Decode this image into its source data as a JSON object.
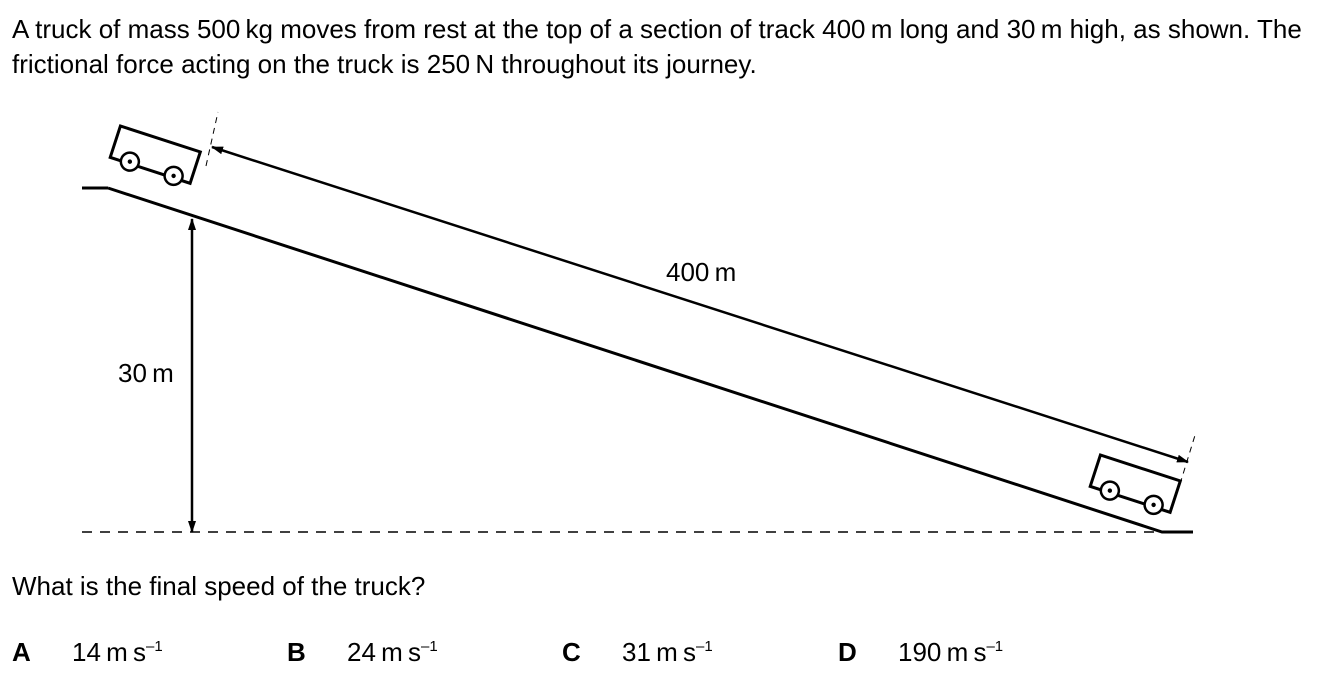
{
  "intro_text": "A truck of mass 500 kg moves from rest at the top of a section of track 400 m long and 30 m high, as shown. The frictional force acting on the truck is 250 N throughout its journey.",
  "diagram": {
    "length_label": "400 m",
    "height_label": "30 m"
  },
  "question": "What is the final speed of the truck?",
  "options": [
    {
      "letter": "A",
      "value": "14 m s",
      "exponent": "–1"
    },
    {
      "letter": "B",
      "value": "24 m s",
      "exponent": "–1"
    },
    {
      "letter": "C",
      "value": "31 m s",
      "exponent": "–1"
    },
    {
      "letter": "D",
      "value": "190 m s",
      "exponent": "–1"
    }
  ]
}
